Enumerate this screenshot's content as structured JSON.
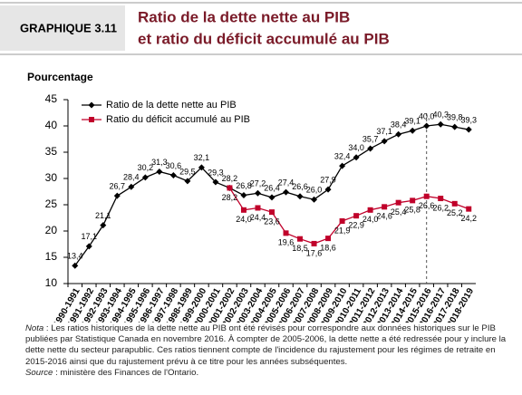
{
  "header": {
    "label": "GRAPHIQUE 3.11",
    "title_lines": [
      "Ratio de la dette nette au PIB",
      "et ratio du déficit accumulé au PIB"
    ]
  },
  "chart_data": {
    "type": "line",
    "ylabel": "Pourcentage",
    "categories": [
      "1990-1991",
      "1991-1992",
      "1992-1993",
      "1993-1994",
      "1994-1995",
      "1995-1996",
      "1996-1997",
      "1997-1998",
      "1998-1999",
      "1999-2000",
      "2000-2001",
      "2001-2002",
      "2002-2003",
      "2003-2004",
      "2004-2005",
      "2005-2006",
      "2006-2007",
      "2007-2008",
      "2008-2009",
      "2009-2010",
      "2010-2011",
      "2011-2012",
      "2012-2013",
      "2013-2014",
      "2014-2015",
      "2015-2016",
      "2016-2017",
      "2017-2018",
      "2018-2019"
    ],
    "series": [
      {
        "name": "Ratio de la dette nette au PIB",
        "color": "#000000",
        "marker": "diamond",
        "values": [
          13.4,
          17.1,
          21.1,
          26.7,
          28.4,
          30.2,
          31.3,
          30.6,
          29.5,
          32.1,
          29.3,
          28.2,
          26.8,
          27.2,
          26.4,
          27.4,
          26.6,
          26.0,
          27.9,
          32.4,
          34.0,
          35.7,
          37.1,
          38.4,
          39.1,
          40.0,
          40.3,
          39.8,
          39.3
        ],
        "value_labels": [
          "13,4",
          "17,1",
          "21,1",
          "26,7",
          "28,4",
          "30,2",
          "31,3",
          "30,6",
          "29,5",
          "32,1",
          "29,3",
          "28,2",
          "26,8",
          "27,2",
          "26,4",
          "27,4",
          "26,6",
          "26,0",
          "27,9",
          "32,4",
          "34,0",
          "35,7",
          "37,1",
          "38,4",
          "39,1",
          "40,0",
          "40,3",
          "39,8",
          "39,3"
        ]
      },
      {
        "name": "Ratio du déficit accumulé au PIB",
        "color": "#c0002a",
        "marker": "square",
        "values": [
          null,
          null,
          null,
          null,
          null,
          null,
          null,
          null,
          null,
          null,
          null,
          28.2,
          24.0,
          24.4,
          23.6,
          19.6,
          18.5,
          17.6,
          18.6,
          21.9,
          22.9,
          24.0,
          24.6,
          25.4,
          25.8,
          26.6,
          26.2,
          25.2,
          24.2
        ],
        "value_labels": [
          null,
          null,
          null,
          null,
          null,
          null,
          null,
          null,
          null,
          null,
          null,
          "28,2",
          "24,0",
          "24,4",
          "23,6",
          "19,6",
          "18,5",
          "17,6",
          "18,6",
          "21,9",
          "22,9",
          "24,0",
          "24,6",
          "25,4",
          "25,8",
          "26,6",
          "26,2",
          "25,2",
          "24,2"
        ]
      }
    ],
    "ylim": [
      10,
      45
    ],
    "yticks": [
      10,
      15,
      20,
      25,
      30,
      35,
      40,
      45
    ],
    "reference_line": "2015-2016",
    "legend": "upper left"
  },
  "note": {
    "label": "Nota",
    "text": " : Les ratios historiques de la dette nette au PIB ont été révisés pour correspondre aux données historiques sur le PIB publiées par Statistique Canada en novembre 2016. À compter de 2005-2006, la dette nette a été redressée pour y inclure la dette nette du secteur parapublic. Ces ratios tiennent compte de l'incidence du rajustement pour les régimes de retraite en 2015-2016 ainsi que du rajustement prévu à ce titre pour les années subséquentes."
  },
  "source": {
    "label": "Source",
    "text": " : ministère des Finances de l'Ontario."
  }
}
